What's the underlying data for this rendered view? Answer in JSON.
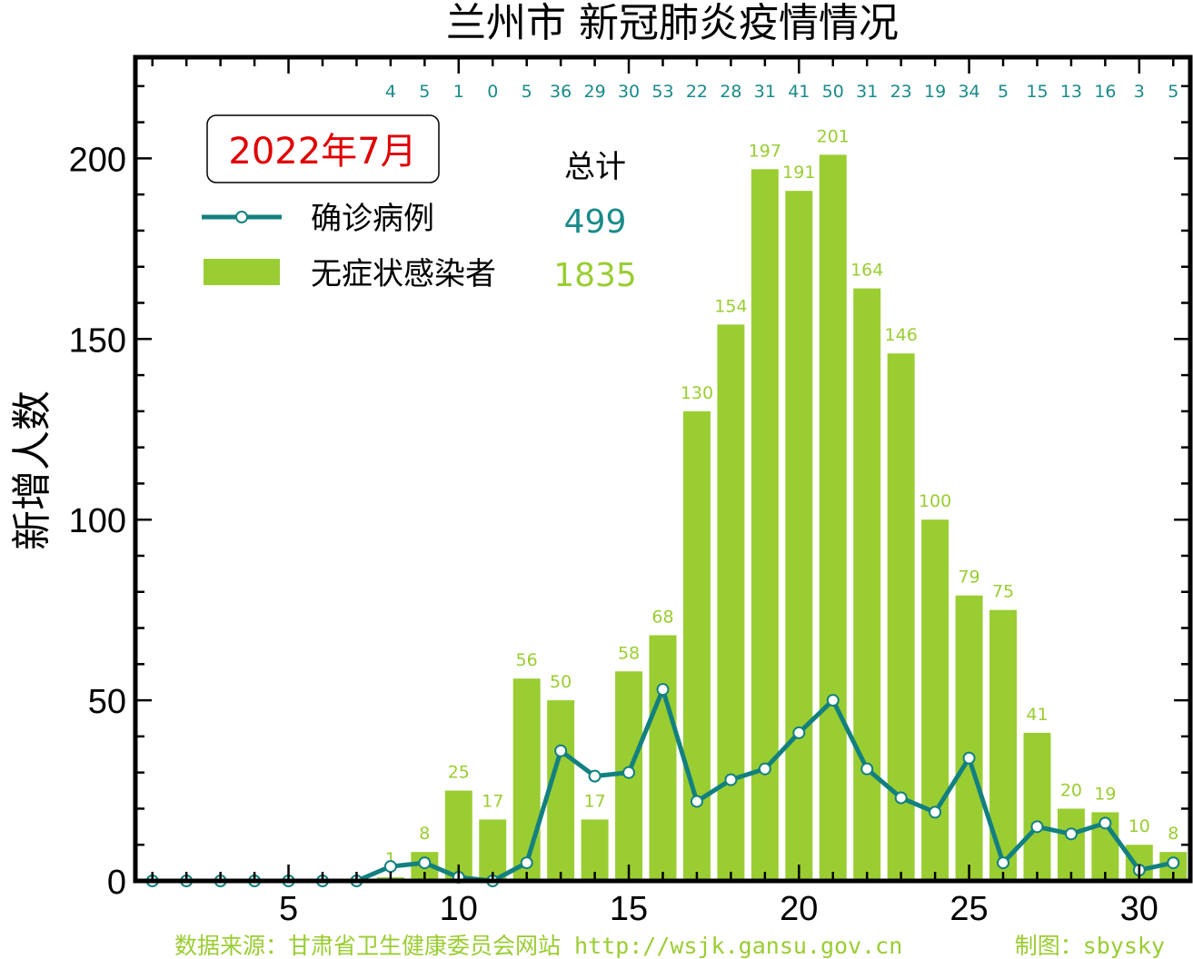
{
  "colors": {
    "bar": "#9acd32",
    "line": "#138080",
    "marker_fill": "#ffffff",
    "month_text": "#e00000",
    "top_label": "#1a8a8a"
  },
  "chart_data": {
    "type": "bar",
    "title": "兰州市 新冠肺炎疫情情况",
    "ylabel": "新增人数",
    "xlim": [
      0.5,
      31.5
    ],
    "ylim": [
      0,
      228
    ],
    "x_ticks": [
      5,
      10,
      15,
      20,
      25,
      30
    ],
    "y_ticks": [
      0,
      50,
      100,
      150,
      200
    ],
    "days": [
      1,
      2,
      3,
      4,
      5,
      6,
      7,
      8,
      9,
      10,
      11,
      12,
      13,
      14,
      15,
      16,
      17,
      18,
      19,
      20,
      21,
      22,
      23,
      24,
      25,
      26,
      27,
      28,
      29,
      30,
      31
    ],
    "series": [
      {
        "name": "无症状感染者",
        "type": "bar",
        "values": [
          0,
          0,
          0,
          0,
          0,
          0,
          0,
          1,
          8,
          25,
          17,
          56,
          50,
          17,
          58,
          68,
          130,
          154,
          197,
          191,
          201,
          164,
          146,
          100,
          79,
          75,
          41,
          20,
          19,
          10,
          8
        ],
        "labels": [
          "",
          "",
          "",
          "",
          "",
          "",
          "",
          "1",
          "8",
          "25",
          "17",
          "56",
          "50",
          "17",
          "58",
          "68",
          "130",
          "154",
          "197",
          "191",
          "201",
          "164",
          "146",
          "100",
          "79",
          "75",
          "41",
          "20",
          "19",
          "10",
          "8"
        ]
      },
      {
        "name": "确诊病例",
        "type": "line",
        "values": [
          0,
          0,
          0,
          0,
          0,
          0,
          0,
          4,
          5,
          1,
          0,
          5,
          36,
          29,
          30,
          53,
          22,
          28,
          31,
          41,
          50,
          31,
          23,
          19,
          34,
          5,
          15,
          13,
          16,
          3,
          5
        ]
      }
    ],
    "top_labels": [
      {
        "day": 8,
        "text": "4"
      },
      {
        "day": 9,
        "text": "5"
      },
      {
        "day": 10,
        "text": "1"
      },
      {
        "day": 11,
        "text": "0"
      },
      {
        "day": 12,
        "text": "5"
      },
      {
        "day": 13,
        "text": "36"
      },
      {
        "day": 14,
        "text": "29"
      },
      {
        "day": 15,
        "text": "30"
      },
      {
        "day": 16,
        "text": "53"
      },
      {
        "day": 17,
        "text": "22"
      },
      {
        "day": 18,
        "text": "28"
      },
      {
        "day": 19,
        "text": "31"
      },
      {
        "day": 20,
        "text": "41"
      },
      {
        "day": 21,
        "text": "50"
      },
      {
        "day": 22,
        "text": "31"
      },
      {
        "day": 23,
        "text": "23"
      },
      {
        "day": 24,
        "text": "19"
      },
      {
        "day": 25,
        "text": "34"
      },
      {
        "day": 26,
        "text": "5"
      },
      {
        "day": 27,
        "text": "15"
      },
      {
        "day": 28,
        "text": "13"
      },
      {
        "day": 29,
        "text": "16"
      },
      {
        "day": 30,
        "text": "3"
      },
      {
        "day": 31,
        "text": "5"
      }
    ],
    "legend": {
      "month": "2022年7月",
      "total_header": "总计",
      "items": [
        {
          "label": "确诊病例",
          "total": "499"
        },
        {
          "label": "无症状感染者",
          "total": "1835"
        }
      ]
    },
    "source": "数据来源：甘肃省卫生健康委员会网站 http://wsjk.gansu.gov.cn",
    "credit": "制图：sbysky"
  }
}
